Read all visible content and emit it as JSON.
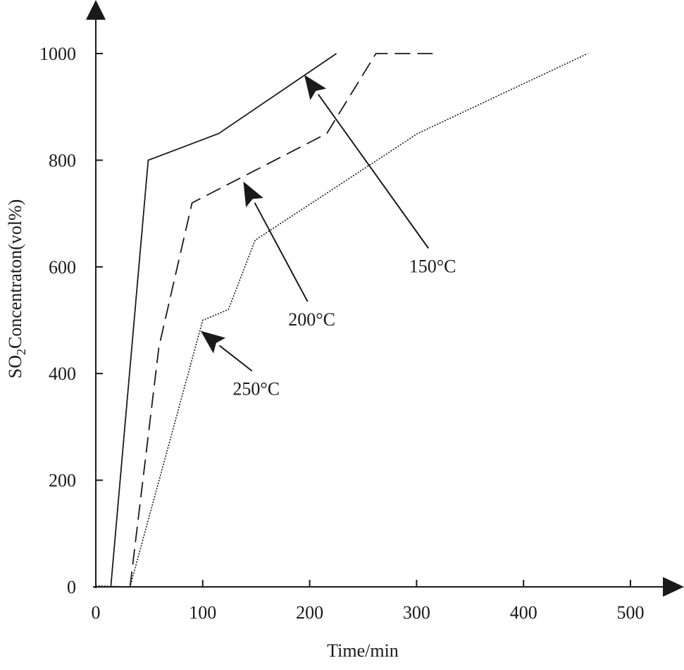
{
  "chart_data": {
    "type": "line",
    "title": "",
    "xlabel": "Time/min",
    "ylabel": "SO2Concentraton(vol%)",
    "ylabel_parts": {
      "prefix": "SO",
      "subscript": "2",
      "suffix": "Concentraton(vol%)"
    },
    "xlim": [
      0,
      540
    ],
    "ylim": [
      0,
      1100
    ],
    "x_ticks": [
      0,
      100,
      200,
      300,
      400,
      500
    ],
    "x_tick_labels": [
      "0",
      "100",
      "200",
      "300",
      "400",
      "500"
    ],
    "y_ticks": [
      0,
      200,
      400,
      600,
      800,
      1000
    ],
    "y_tick_labels": [
      "0",
      "200",
      "400",
      "600",
      "800",
      "1000"
    ],
    "grid": false,
    "legend": "none (series identified by arrow annotations)",
    "series": [
      {
        "name": "150°C",
        "style": "solid",
        "x": [
          14,
          49,
          115,
          225
        ],
        "y": [
          0,
          800,
          850,
          1000
        ]
      },
      {
        "name": "200°C",
        "style": "dashed",
        "x": [
          32,
          59,
          90,
          216,
          262,
          315
        ],
        "y": [
          0,
          450,
          720,
          850,
          1000,
          1000
        ]
      },
      {
        "name": "250°C",
        "style": "dotted",
        "x": [
          0,
          32,
          100,
          124,
          149,
          301,
          460
        ],
        "y": [
          2,
          0,
          500,
          520,
          650,
          850,
          1000
        ]
      }
    ],
    "annotations": [
      {
        "text": "150°C",
        "label_at": [
          315,
          590
        ],
        "arrow_to": [
          195,
          960
        ]
      },
      {
        "text": "200°C",
        "label_at": [
          202,
          490
        ],
        "arrow_to": [
          138,
          760
        ]
      },
      {
        "text": "250°C",
        "label_at": [
          150,
          360
        ],
        "arrow_to": [
          98,
          480
        ]
      }
    ]
  }
}
